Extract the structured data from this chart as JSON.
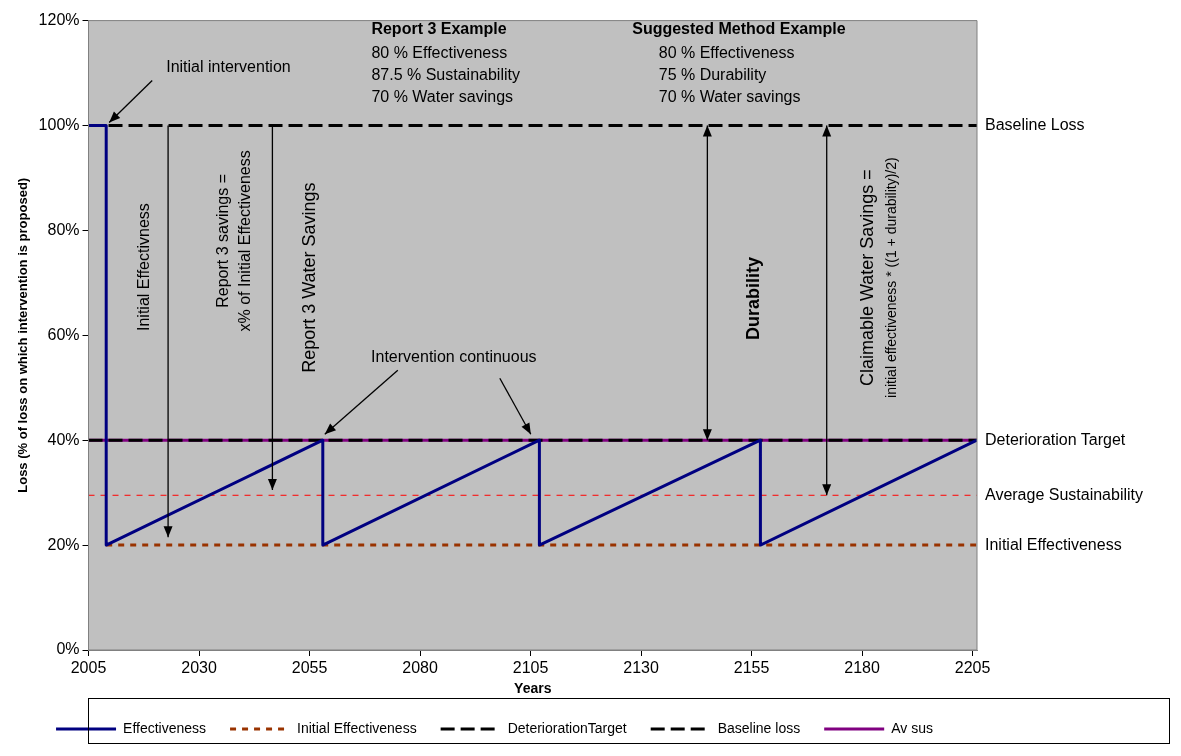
{
  "chart_data": {
    "type": "line",
    "xlabel": "Years",
    "ylabel": "Loss (% of loss on which intervention is proposed)",
    "xlim": [
      2005,
      2206
    ],
    "xticks": [
      2005,
      2030,
      2055,
      2080,
      2105,
      2130,
      2155,
      2180,
      2205
    ],
    "ylim": [
      0,
      120
    ],
    "yticks": [
      {
        "value": 0,
        "label": "0%"
      },
      {
        "value": 20,
        "label": "20%"
      },
      {
        "value": 40,
        "label": "40%"
      },
      {
        "value": 60,
        "label": "60%"
      },
      {
        "value": 80,
        "label": "80%"
      },
      {
        "value": 100,
        "label": "100%"
      },
      {
        "value": 120,
        "label": "120%"
      }
    ],
    "grid": false,
    "legend": "bottom",
    "marker": "none",
    "series": [
      {
        "name": "Effectiveness",
        "color": "#000080",
        "line_style": "solid",
        "x": [
          2005,
          2009,
          2009,
          2058,
          2058,
          2107,
          2107,
          2157,
          2157,
          2206
        ],
        "values": [
          100,
          100,
          20,
          40,
          20,
          40,
          20,
          40,
          20,
          40
        ]
      },
      {
        "name": "Initial Effectiveness",
        "color": "#993300",
        "line_style": "dotted",
        "x": [
          2009,
          2206
        ],
        "values": [
          20,
          20
        ]
      },
      {
        "name": "DeteriorationTarget",
        "color": "#000000",
        "line_style": "dashed",
        "x": [
          2005,
          2206
        ],
        "values": [
          40,
          40
        ]
      },
      {
        "name": "Baseline loss",
        "color": "#000000",
        "line_style": "dashed",
        "x": [
          2005,
          2206
        ],
        "values": [
          100,
          100
        ]
      },
      {
        "name": "Av sus",
        "color": "#800080",
        "line_style": "solid",
        "x": [
          2005,
          2206
        ],
        "values": [
          40,
          40
        ]
      }
    ],
    "ref_lines": [
      {
        "axis": "y",
        "value": 29.5,
        "label": "Average Sustainability",
        "color": "#ff0000",
        "line_style": "dotted"
      }
    ],
    "annotations": [
      {
        "text": "Baseline Loss",
        "x": 2206,
        "y": 100
      },
      {
        "text": "Deterioration Target",
        "x": 2206,
        "y": 40
      },
      {
        "text": "Initial Effectiveness",
        "x": 2206,
        "y": 20
      },
      {
        "text": "Initial intervention",
        "x": 2009,
        "y": 100
      },
      {
        "text": "Intervention continuous",
        "x": 2058,
        "y": 40
      },
      "Durability",
      "Initial Effectivness",
      "Report 3 savings =\nx% of Initial Effectiveness",
      "Report 3 Water Savings",
      "Claimable Water Savings =\ninitial effectiveness * ((1 + durability)/2)",
      "Report 3 Example",
      "80 % Effectiveness\n87.5 % Sustainability\n70 % Water savings",
      "Suggested Method Example",
      "80 % Effectiveness\n75 % Durability\n70 % Water savings"
    ]
  }
}
